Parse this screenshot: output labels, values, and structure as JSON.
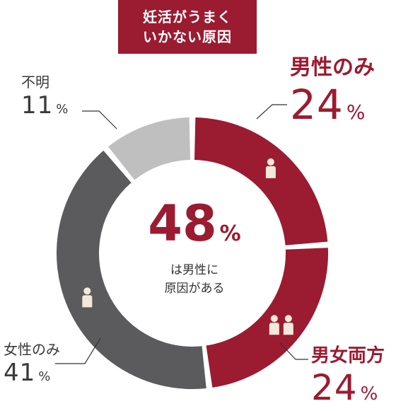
{
  "title_lines": [
    "妊活がうまく",
    "いかない原因"
  ],
  "center": {
    "value": "48",
    "unit": "%",
    "text_lines": [
      "は男性に",
      "原因がある"
    ]
  },
  "labels": {
    "male_only": {
      "name": "男性のみ",
      "value": "24",
      "unit": "%"
    },
    "both": {
      "name": "男女両方",
      "value": "24",
      "unit": "%"
    },
    "female_only": {
      "name": "女性のみ",
      "value": "41",
      "unit": "%"
    },
    "unknown": {
      "name": "不明",
      "value": "11",
      "unit": "%"
    }
  },
  "colors": {
    "accent": "#9b1b30",
    "female": "#5b5a5c",
    "unknown": "#bfbfbf",
    "icon": "#f3e9da"
  },
  "icons": [
    "person-icon",
    "couple-icon",
    "person-icon"
  ],
  "chart_data": {
    "type": "pie",
    "title": "妊活がうまくいかない原因",
    "categories": [
      "男性のみ",
      "男女両方",
      "女性のみ",
      "不明"
    ],
    "values": [
      24,
      24,
      41,
      11
    ],
    "unit": "%",
    "colors": [
      "#9b1b30",
      "#9b1b30",
      "#5b5a5c",
      "#bfbfbf"
    ],
    "style": "donut",
    "start": "top",
    "direction": "clockwise"
  }
}
